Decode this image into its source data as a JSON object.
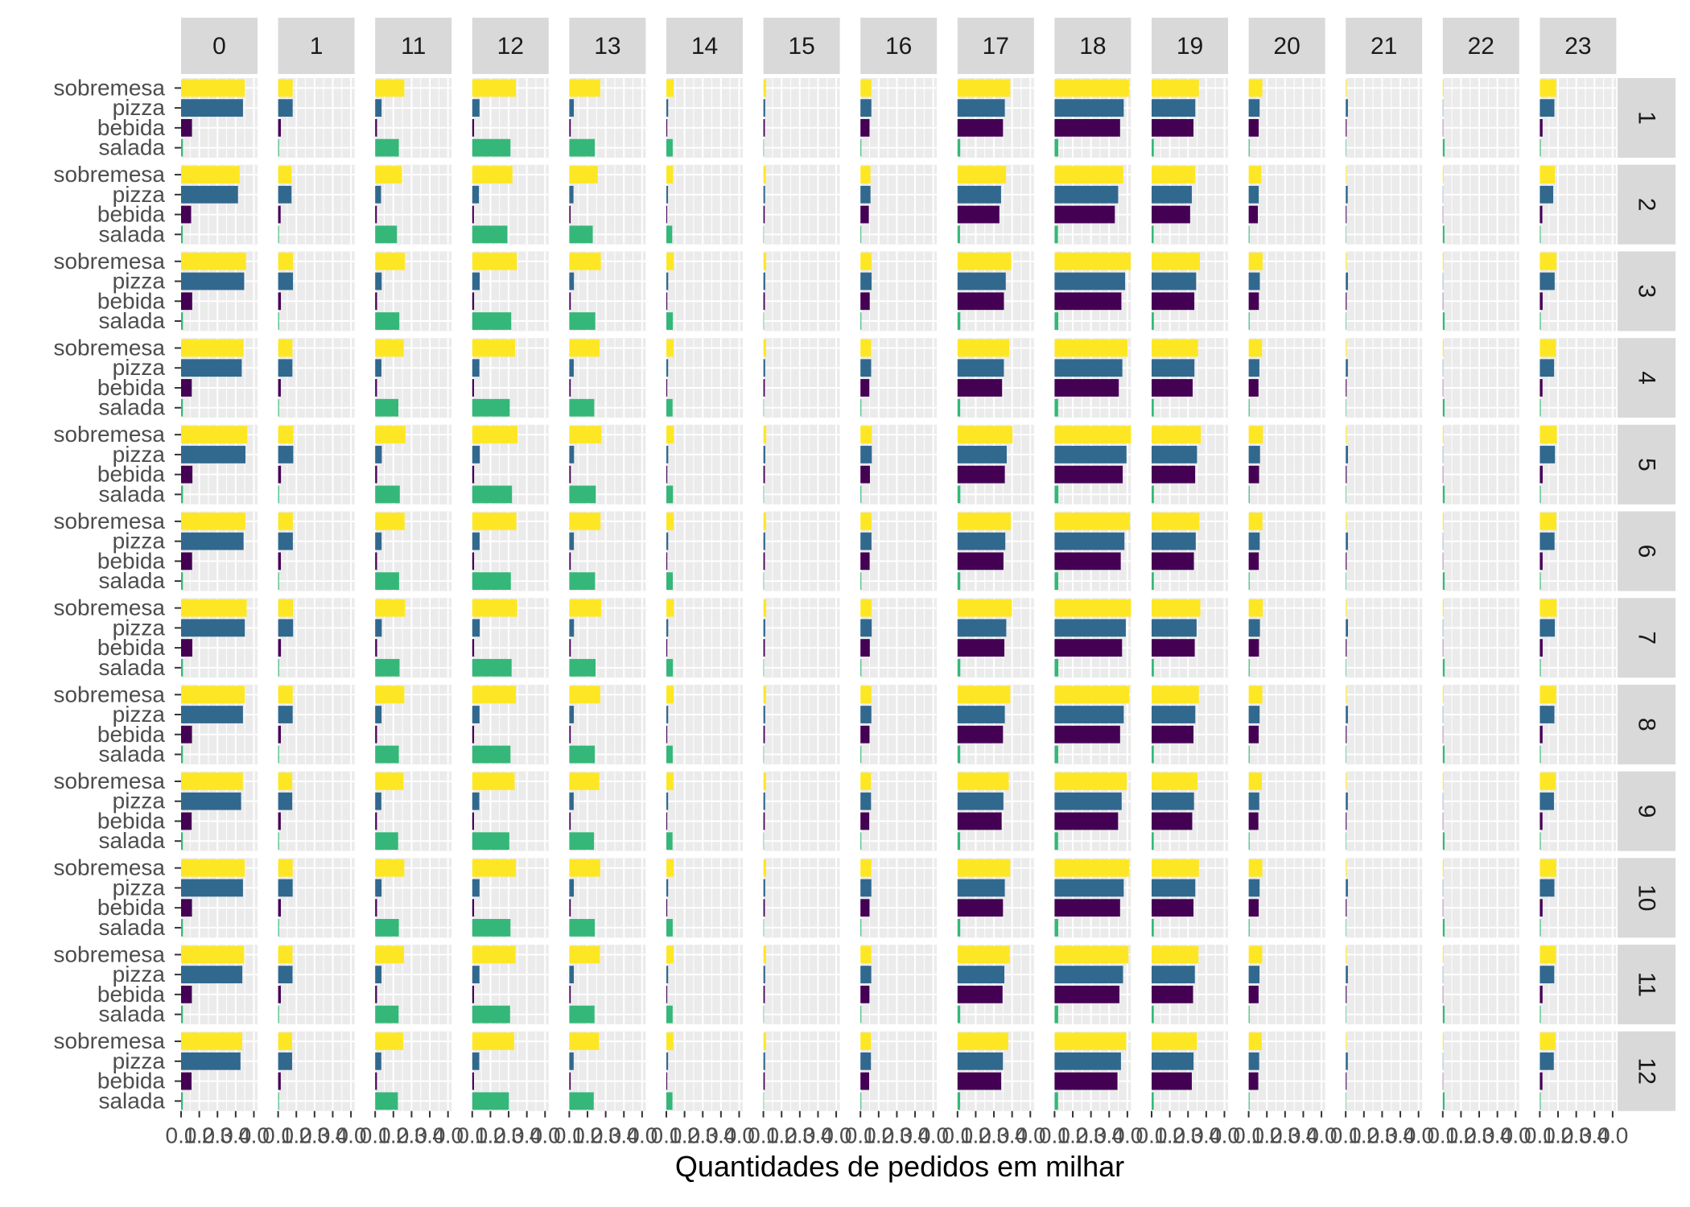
{
  "chart_data": {
    "type": "bar",
    "orientation": "horizontal",
    "facet_layout": "grid",
    "title": "",
    "xlabel": "Quantidades de pedidos em milhar",
    "ylabel": "",
    "xlim": [
      0,
      4.2
    ],
    "x_ticks": [
      "0.0",
      "1.0",
      "2.0",
      "3.0",
      "4.0"
    ],
    "grid": true,
    "legend": "none",
    "column_facets": [
      "0",
      "1",
      "11",
      "12",
      "13",
      "14",
      "15",
      "16",
      "17",
      "18",
      "19",
      "20",
      "21",
      "22",
      "23"
    ],
    "row_facets": [
      "1",
      "2",
      "3",
      "4",
      "5",
      "6",
      "7",
      "8",
      "9",
      "10",
      "11",
      "12"
    ],
    "categories": [
      "sobremesa",
      "pizza",
      "bebida",
      "salada"
    ],
    "category_colors": {
      "sobremesa": "#FDE725",
      "pizza": "#31688E",
      "bebida": "#440154",
      "salada": "#35B779"
    },
    "base_values": {
      "sobremesa": [
        3.5,
        0.8,
        1.6,
        2.4,
        1.7,
        0.4,
        0.15,
        0.6,
        2.9,
        4.1,
        2.6,
        0.75,
        0.05,
        0.05,
        0.9
      ],
      "pizza": [
        3.4,
        0.8,
        0.35,
        0.4,
        0.25,
        0.1,
        0.1,
        0.6,
        2.6,
        3.8,
        2.4,
        0.6,
        0.12,
        0.02,
        0.8
      ],
      "bebida": [
        0.6,
        0.15,
        0.1,
        0.1,
        0.08,
        0.05,
        0.08,
        0.5,
        2.5,
        3.6,
        2.3,
        0.55,
        0.05,
        0.02,
        0.15
      ],
      "salada": [
        0.1,
        0.05,
        1.3,
        2.1,
        1.4,
        0.35,
        0.03,
        0.05,
        0.15,
        0.2,
        0.12,
        0.05,
        0.03,
        0.1,
        0.05
      ]
    },
    "row_scale": [
      1.0,
      0.92,
      1.02,
      0.98,
      1.04,
      1.01,
      1.03,
      1.0,
      0.97,
      1.0,
      0.99,
      0.96
    ]
  }
}
